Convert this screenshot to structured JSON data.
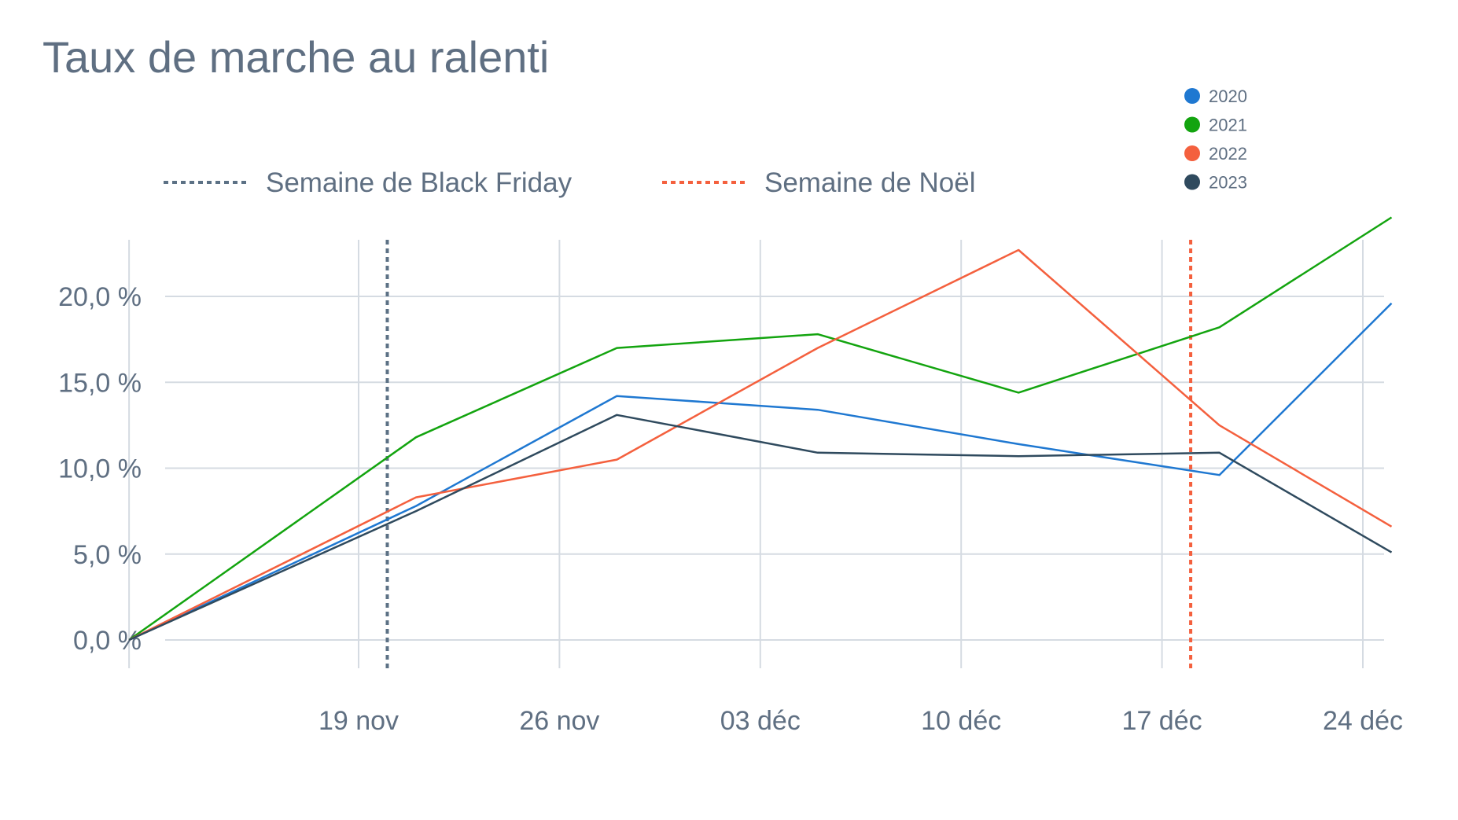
{
  "chart_data": {
    "type": "line",
    "title": "Taux de marche au ralenti",
    "xlabel": "",
    "ylabel": "",
    "x_start": "2023-11-11",
    "x_ticks": [
      "19 nov",
      "26 nov",
      "03 déc",
      "10 déc",
      "17 déc",
      "24 déc"
    ],
    "x_tick_dates": [
      "2023-11-19",
      "2023-11-26",
      "2023-12-03",
      "2023-12-10",
      "2023-12-17",
      "2023-12-24"
    ],
    "y_ticks": [
      "0,0 %",
      "5,0 %",
      "10,0 %",
      "15,0 %",
      "20,0 %"
    ],
    "y_tick_values": [
      0,
      5,
      10,
      15,
      20
    ],
    "ylim": [
      -1.5,
      23.5
    ],
    "grid": true,
    "legend_position": "top-right",
    "x": [
      "2023-11-11",
      "2023-11-21",
      "2023-11-28",
      "2023-12-05",
      "2023-12-12",
      "2023-12-19",
      "2023-12-25"
    ],
    "series": [
      {
        "name": "2020",
        "color": "#1f78d1",
        "values": [
          0.0,
          7.8,
          14.2,
          13.4,
          11.4,
          9.6,
          19.6
        ]
      },
      {
        "name": "2021",
        "color": "#13a40f",
        "values": [
          0.0,
          11.8,
          17.0,
          17.8,
          14.4,
          18.2,
          24.6
        ]
      },
      {
        "name": "2022",
        "color": "#f4603e",
        "values": [
          0.0,
          8.3,
          10.5,
          17.0,
          22.7,
          12.5,
          6.6
        ]
      },
      {
        "name": "2023",
        "color": "#2f4a5e",
        "values": [
          0.0,
          7.5,
          13.1,
          10.9,
          10.7,
          10.9,
          5.1
        ]
      }
    ],
    "reference_lines": [
      {
        "label": "Semaine de Black Friday",
        "date": "2023-11-20",
        "color": "#5c7185",
        "style": "dotted"
      },
      {
        "label": "Semaine de Noël",
        "date": "2023-12-18",
        "color": "#f4603e",
        "style": "dotted"
      }
    ]
  }
}
